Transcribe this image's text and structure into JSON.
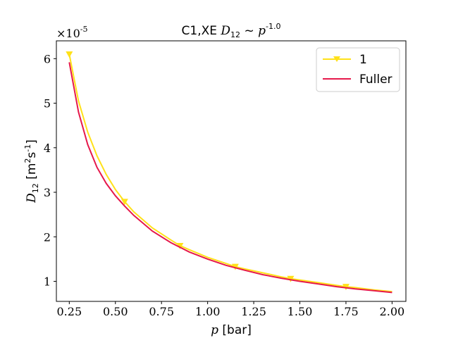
{
  "chart_data": {
    "type": "line",
    "title": "C1,XE D12 ~ p^-1.0",
    "title_parts": {
      "prefix": "C1,XE ",
      "symbol": "D",
      "symbol_sub": "12",
      "relation": " ~ ",
      "base": "p",
      "exponent": "-1.0"
    },
    "xlabel": "p [bar]",
    "xlabel_parts": {
      "symbol": "p",
      "unit": " [bar]"
    },
    "ylabel": "D12 [m2s-1]",
    "ylabel_parts": {
      "symbol": "D",
      "symbol_sub": "12",
      "unit_open": " [m",
      "unit_sup1": "2",
      "unit_mid": "s",
      "unit_sup2": "-1",
      "unit_close": "]"
    },
    "offset_text": {
      "base": "×10",
      "exponent": "-5"
    },
    "xlim": [
      0.18,
      2.075
    ],
    "ylim": [
      5.5e-06,
      6.4e-05
    ],
    "xticks": [
      0.25,
      0.5,
      0.75,
      1.0,
      1.25,
      1.5,
      1.75,
      2.0
    ],
    "xtick_labels": [
      "0.25",
      "0.50",
      "0.75",
      "1.00",
      "1.25",
      "1.50",
      "1.75",
      "2.00"
    ],
    "yticks": [
      1e-05,
      2e-05,
      3e-05,
      4e-05,
      5e-05,
      6e-05
    ],
    "ytick_labels": [
      "1",
      "2",
      "3",
      "4",
      "5",
      "6"
    ],
    "grid": false,
    "legend_position": "top-right",
    "series": [
      {
        "name": "1",
        "color": "#ffe119",
        "marker": "triangle-down",
        "x": [
          0.25,
          0.3,
          0.35,
          0.4,
          0.45,
          0.5,
          0.55,
          0.6,
          0.7,
          0.8,
          0.85,
          0.9,
          1.0,
          1.1,
          1.15,
          1.2,
          1.3,
          1.4,
          1.45,
          1.5,
          1.6,
          1.7,
          1.75,
          1.8,
          1.9,
          2.0
        ],
        "y": [
          6.1e-05,
          5.05e-05,
          4.35e-05,
          3.82e-05,
          3.4e-05,
          3.06e-05,
          2.79e-05,
          2.56e-05,
          2.2e-05,
          1.93e-05,
          1.8e-05,
          1.71e-05,
          1.54e-05,
          1.4e-05,
          1.33e-05,
          1.28e-05,
          1.19e-05,
          1.1e-05,
          1.06e-05,
          1.03e-05,
          9.7e-06,
          9.1e-06,
          8.8e-06,
          8.6e-06,
          8.1e-06,
          7.7e-06
        ],
        "marker_x": [
          0.25,
          0.55,
          0.85,
          1.15,
          1.45,
          1.75
        ]
      },
      {
        "name": "Fuller",
        "color": "#e6194b",
        "marker": "none",
        "x": [
          0.25,
          0.3,
          0.35,
          0.4,
          0.45,
          0.5,
          0.55,
          0.6,
          0.7,
          0.8,
          0.9,
          1.0,
          1.1,
          1.2,
          1.3,
          1.4,
          1.5,
          1.6,
          1.7,
          1.8,
          1.9,
          2.0
        ],
        "y": [
          5.92e-05,
          4.8e-05,
          4.07e-05,
          3.56e-05,
          3.2e-05,
          2.92e-05,
          2.69e-05,
          2.48e-05,
          2.13e-05,
          1.87e-05,
          1.66e-05,
          1.5e-05,
          1.36e-05,
          1.25e-05,
          1.15e-05,
          1.07e-05,
          1e-05,
          9.4e-06,
          8.8e-06,
          8.3e-06,
          7.9e-06,
          7.5e-06
        ]
      }
    ]
  }
}
